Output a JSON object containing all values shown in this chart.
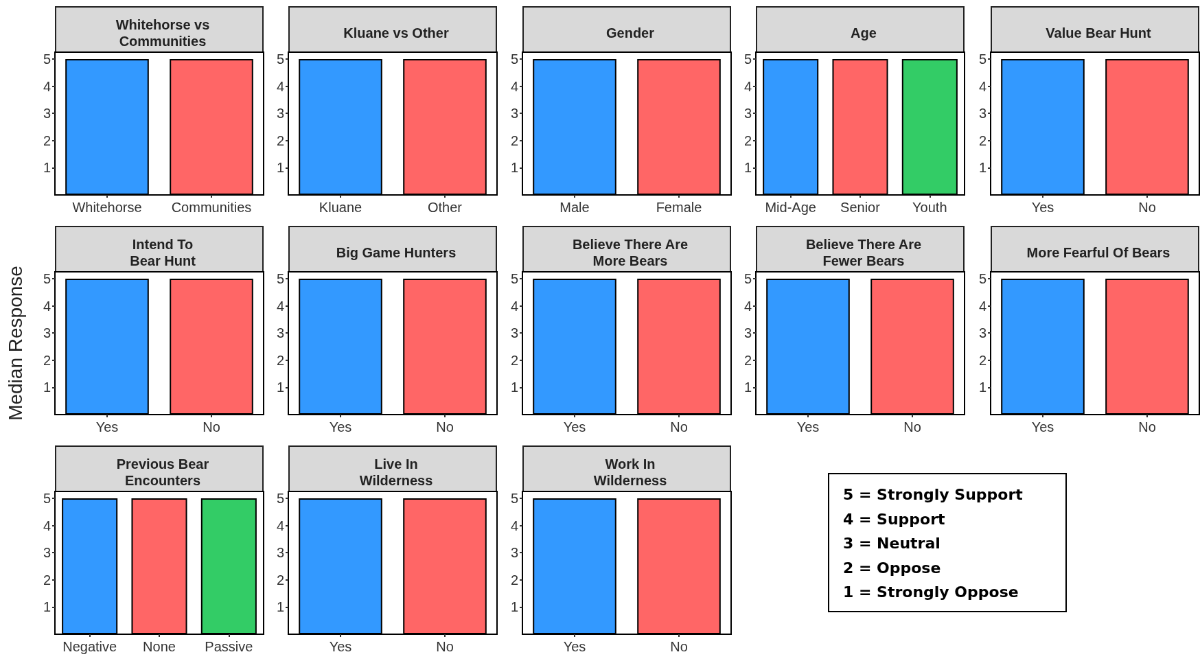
{
  "chart_data": [
    {
      "type": "bar",
      "title": "Whitehorse vs\nCommunities",
      "categories": [
        "Whitehorse",
        "Communities"
      ],
      "values": [
        5,
        5
      ],
      "colors": [
        "#3399ff",
        "#ff6666"
      ],
      "ylim": [
        0,
        5.25
      ],
      "yticks": [
        1,
        2,
        3,
        4,
        5
      ]
    },
    {
      "type": "bar",
      "title": "Kluane vs Other",
      "categories": [
        "Kluane",
        "Other"
      ],
      "values": [
        5,
        5
      ],
      "colors": [
        "#3399ff",
        "#ff6666"
      ],
      "ylim": [
        0,
        5.25
      ],
      "yticks": [
        1,
        2,
        3,
        4,
        5
      ]
    },
    {
      "type": "bar",
      "title": "Gender",
      "categories": [
        "Male",
        "Female"
      ],
      "values": [
        5,
        5
      ],
      "colors": [
        "#3399ff",
        "#ff6666"
      ],
      "ylim": [
        0,
        5.25
      ],
      "yticks": [
        1,
        2,
        3,
        4,
        5
      ]
    },
    {
      "type": "bar",
      "title": "Age",
      "categories": [
        "Mid-Age",
        "Senior",
        "Youth"
      ],
      "values": [
        5,
        5,
        5
      ],
      "colors": [
        "#3399ff",
        "#ff6666",
        "#33cc66"
      ],
      "ylim": [
        0,
        5.25
      ],
      "yticks": [
        1,
        2,
        3,
        4,
        5
      ]
    },
    {
      "type": "bar",
      "title": "Value Bear Hunt",
      "categories": [
        "Yes",
        "No"
      ],
      "values": [
        5,
        5
      ],
      "colors": [
        "#3399ff",
        "#ff6666"
      ],
      "ylim": [
        0,
        5.25
      ],
      "yticks": [
        1,
        2,
        3,
        4,
        5
      ]
    },
    {
      "type": "bar",
      "title": "Intend To\nBear Hunt",
      "ylabel": "Median Response",
      "categories": [
        "Yes",
        "No"
      ],
      "values": [
        5,
        5
      ],
      "colors": [
        "#3399ff",
        "#ff6666"
      ],
      "ylim": [
        0,
        5.25
      ],
      "yticks": [
        1,
        2,
        3,
        4,
        5
      ]
    },
    {
      "type": "bar",
      "title": "Big Game Hunters",
      "categories": [
        "Yes",
        "No"
      ],
      "values": [
        5,
        5
      ],
      "colors": [
        "#3399ff",
        "#ff6666"
      ],
      "ylim": [
        0,
        5.25
      ],
      "yticks": [
        1,
        2,
        3,
        4,
        5
      ]
    },
    {
      "type": "bar",
      "title": "Believe There Are\nMore Bears",
      "categories": [
        "Yes",
        "No"
      ],
      "values": [
        5,
        5
      ],
      "colors": [
        "#3399ff",
        "#ff6666"
      ],
      "ylim": [
        0,
        5.25
      ],
      "yticks": [
        1,
        2,
        3,
        4,
        5
      ]
    },
    {
      "type": "bar",
      "title": "Believe There Are\nFewer Bears",
      "categories": [
        "Yes",
        "No"
      ],
      "values": [
        5,
        5
      ],
      "colors": [
        "#3399ff",
        "#ff6666"
      ],
      "ylim": [
        0,
        5.25
      ],
      "yticks": [
        1,
        2,
        3,
        4,
        5
      ]
    },
    {
      "type": "bar",
      "title": "More Fearful Of Bears",
      "categories": [
        "Yes",
        "No"
      ],
      "values": [
        5,
        5
      ],
      "colors": [
        "#3399ff",
        "#ff6666"
      ],
      "ylim": [
        0,
        5.25
      ],
      "yticks": [
        1,
        2,
        3,
        4,
        5
      ]
    },
    {
      "type": "bar",
      "title": "Previous Bear\nEncounters",
      "categories": [
        "Negative",
        "None",
        "Passive"
      ],
      "values": [
        5,
        5,
        5
      ],
      "colors": [
        "#3399ff",
        "#ff6666",
        "#33cc66"
      ],
      "ylim": [
        0,
        5.25
      ],
      "yticks": [
        1,
        2,
        3,
        4,
        5
      ]
    },
    {
      "type": "bar",
      "title": "Live In\nWilderness",
      "categories": [
        "Yes",
        "No"
      ],
      "values": [
        5,
        5
      ],
      "colors": [
        "#3399ff",
        "#ff6666"
      ],
      "ylim": [
        0,
        5.25
      ],
      "yticks": [
        1,
        2,
        3,
        4,
        5
      ]
    },
    {
      "type": "bar",
      "title": "Work In\nWilderness",
      "categories": [
        "Yes",
        "No"
      ],
      "values": [
        5,
        5
      ],
      "colors": [
        "#3399ff",
        "#ff6666"
      ],
      "ylim": [
        0,
        5.25
      ],
      "yticks": [
        1,
        2,
        3,
        4,
        5
      ]
    },
    {
      "type": "other",
      "annotations": [
        "5 = Strongly Support",
        "4 = Support",
        "3 = Neutral",
        "2 = Oppose",
        "1 = Strongly Oppose"
      ]
    }
  ]
}
